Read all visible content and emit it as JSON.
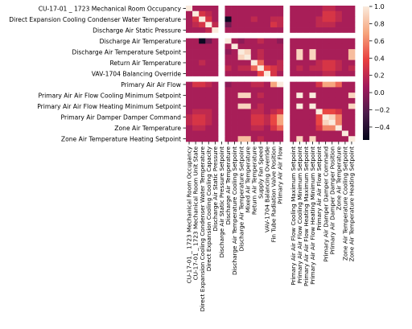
{
  "chart_data": {
    "type": "heatmap",
    "rows": [
      "CU-17-01 _ 1723 Mechanical Room Occupancy",
      "",
      "Direct Expansion Cooling Condenser Water Temperature",
      "",
      "Discharge Air Static Pressure",
      "",
      "Discharge Air Temperature",
      "",
      "Discharge Air Temperature Setpoint",
      "",
      "Return Air Temperature",
      "",
      "VAV-1704 Balancing Override",
      "",
      "Primary Air Air Flow",
      "",
      "Primary Air Air Flow Cooling Minimum Setpoint",
      "",
      "Primary Air Air Flow Heating Minimum Setpoint",
      "",
      "Primary Air Damper Damper Command",
      "",
      "Zone Air Temperature",
      "",
      "Zone Air Temperature Heating Setpoint"
    ],
    "columns": [
      "CU-17-01 _ 1723 Mechanical Room Occupancy",
      "CU-17-01 _ 1723 Mechanical Room Unit State",
      "Direct Expansion Cooling Condenser Water Temperature",
      "Direct Expansion Cooling Cooling Capacity",
      "Discharge Air Static Pressure",
      "Discharge Air Static Pressure Setpoint",
      "Discharge Air Temperature",
      "Discharge Air Temperature Cooling Setpoint",
      "Discharge Air Temperature Setpoint",
      "Mixed Air Temperature",
      "Return Air Temperature",
      "Supply Fan Speed",
      "VAV-1704 Balancing Override",
      "Fin Tube Radiation Valve Position",
      "Primary Air Air Flow",
      "",
      "Primary Air Air Flow Cooling Maximum Setpoint",
      "Primary Air Air Flow Cooling Minimum Setpoint",
      "Primary Air Air Flow Heating Maximum Setpoint",
      "Primary Air Air Flow Heating Minimum Setpoint",
      "Primary Air Air Flow Setpoint",
      "Primary Air Damper Damper Command",
      "Primary Air Damper Damper Position",
      "Zone Air Temperature",
      "Zone Air Temperature Cooling Setpoint",
      "Zone Air Temperature Heating Setpoint"
    ],
    "values": [
      [
        1.0,
        0.1,
        0.1,
        0.1,
        0.1,
        null,
        0.1,
        0.1,
        0.1,
        0.1,
        0.1,
        0.1,
        0.1,
        0.1,
        0.1,
        null,
        0.1,
        0.1,
        0.1,
        0.1,
        0.1,
        0.2,
        0.2,
        0.1,
        0.1,
        0.1
      ],
      [
        0.1,
        1.0,
        0.3,
        0.2,
        0.1,
        null,
        0.1,
        0.1,
        0.1,
        0.1,
        0.1,
        0.1,
        0.1,
        0.1,
        0.1,
        null,
        0.1,
        0.1,
        0.1,
        0.1,
        0.1,
        0.3,
        0.3,
        0.2,
        0.1,
        0.1
      ],
      [
        0.1,
        0.3,
        1.0,
        0.3,
        0.1,
        null,
        -0.5,
        0.1,
        0.1,
        0.1,
        0.2,
        0.1,
        0.1,
        0.2,
        0.2,
        null,
        0.1,
        0.1,
        0.1,
        0.1,
        0.2,
        0.3,
        0.3,
        0.2,
        0.1,
        0.1
      ],
      [
        0.1,
        0.2,
        0.3,
        1.0,
        0.2,
        null,
        -0.1,
        0.1,
        0.1,
        0.1,
        0.1,
        0.1,
        0.1,
        0.3,
        0.2,
        null,
        0.1,
        0.1,
        0.1,
        0.1,
        0.2,
        0.2,
        0.2,
        0.1,
        0.1,
        0.1
      ],
      [
        0.1,
        0.1,
        0.1,
        0.2,
        1.0,
        null,
        0.1,
        0.1,
        0.1,
        0.1,
        0.1,
        0.1,
        0.1,
        0.1,
        0.1,
        null,
        0.1,
        0.1,
        0.1,
        0.1,
        0.1,
        0.1,
        0.1,
        0.1,
        0.1,
        0.1
      ],
      [
        null,
        null,
        null,
        null,
        null,
        null,
        null,
        null,
        null,
        null,
        null,
        null,
        null,
        null,
        null,
        null,
        null,
        null,
        null,
        null,
        null,
        null,
        null,
        null,
        null,
        null
      ],
      [
        0.1,
        0.1,
        -0.5,
        -0.1,
        0.1,
        null,
        1.0,
        0.1,
        0.0,
        0.1,
        0.1,
        0.2,
        0.1,
        0.1,
        0.0,
        null,
        0.1,
        0.1,
        0.1,
        0.1,
        0.1,
        0.1,
        0.1,
        0.1,
        0.1,
        0.1
      ],
      [
        0.1,
        0.1,
        0.1,
        0.1,
        0.1,
        null,
        0.1,
        1.0,
        0.1,
        0.1,
        0.1,
        0.1,
        0.1,
        0.1,
        0.1,
        null,
        0.1,
        0.1,
        0.1,
        0.1,
        0.1,
        0.1,
        0.1,
        0.1,
        0.1,
        0.1
      ],
      [
        0.1,
        0.1,
        0.1,
        0.1,
        0.1,
        null,
        0.0,
        0.1,
        1.0,
        0.9,
        0.1,
        0.2,
        0.1,
        0.1,
        0.1,
        null,
        0.1,
        0.9,
        0.1,
        0.9,
        0.1,
        0.1,
        0.1,
        0.1,
        0.1,
        0.8
      ],
      [
        0.1,
        0.1,
        0.1,
        0.1,
        0.1,
        null,
        0.1,
        0.1,
        0.9,
        1.0,
        0.1,
        0.2,
        0.1,
        0.1,
        0.1,
        null,
        0.1,
        0.9,
        0.1,
        0.9,
        0.1,
        0.1,
        0.1,
        0.1,
        0.1,
        0.8
      ],
      [
        0.1,
        0.1,
        0.2,
        0.1,
        0.1,
        null,
        0.1,
        0.1,
        0.1,
        0.1,
        1.0,
        0.5,
        0.1,
        0.1,
        0.2,
        null,
        0.1,
        0.1,
        0.1,
        0.1,
        0.2,
        0.3,
        0.3,
        0.2,
        0.1,
        0.1
      ],
      [
        0.1,
        0.1,
        0.1,
        0.1,
        0.1,
        null,
        0.2,
        0.1,
        0.2,
        0.2,
        0.5,
        1.0,
        0.4,
        0.3,
        0.2,
        null,
        0.1,
        0.2,
        0.1,
        0.2,
        0.2,
        0.3,
        0.3,
        0.2,
        0.1,
        0.2
      ],
      [
        0.1,
        0.1,
        0.1,
        0.1,
        0.1,
        null,
        0.1,
        0.1,
        0.1,
        0.1,
        0.1,
        0.4,
        1.0,
        0.3,
        0.1,
        null,
        0.1,
        0.1,
        0.1,
        0.1,
        0.1,
        0.2,
        0.2,
        0.1,
        0.1,
        0.1
      ],
      [
        null,
        null,
        null,
        null,
        null,
        null,
        null,
        null,
        null,
        null,
        null,
        null,
        null,
        null,
        null,
        null,
        null,
        null,
        null,
        null,
        null,
        null,
        null,
        null,
        null,
        null
      ],
      [
        0.1,
        0.3,
        0.3,
        0.2,
        0.1,
        null,
        0.0,
        0.1,
        0.1,
        0.1,
        0.2,
        0.2,
        0.1,
        0.7,
        1.0,
        null,
        0.1,
        0.1,
        0.1,
        0.1,
        0.3,
        0.7,
        0.7,
        0.5,
        0.1,
        0.1
      ],
      [
        0.1,
        0.1,
        0.1,
        0.1,
        0.1,
        null,
        0.1,
        0.1,
        0.1,
        0.1,
        0.1,
        0.1,
        0.1,
        0.1,
        0.1,
        null,
        0.1,
        0.1,
        0.1,
        0.1,
        0.1,
        0.1,
        0.1,
        0.1,
        0.1,
        0.1
      ],
      [
        0.1,
        0.1,
        0.1,
        0.1,
        0.1,
        null,
        0.1,
        0.1,
        0.9,
        0.9,
        0.1,
        0.2,
        0.1,
        0.1,
        0.1,
        null,
        0.1,
        1.0,
        0.1,
        1.0,
        0.1,
        0.1,
        0.1,
        0.1,
        0.1,
        0.9
      ],
      [
        0.1,
        0.1,
        0.1,
        0.1,
        0.1,
        null,
        0.1,
        0.1,
        0.1,
        0.1,
        0.1,
        0.1,
        0.1,
        0.1,
        0.1,
        null,
        0.1,
        0.1,
        0.1,
        0.1,
        0.1,
        0.1,
        0.1,
        0.1,
        0.1,
        0.1
      ],
      [
        0.1,
        0.1,
        0.1,
        0.1,
        0.1,
        null,
        0.1,
        0.1,
        0.9,
        0.9,
        0.1,
        0.2,
        0.1,
        0.1,
        0.1,
        null,
        0.1,
        1.0,
        0.1,
        1.0,
        0.1,
        0.1,
        0.1,
        0.1,
        0.1,
        0.9
      ],
      [
        0.1,
        0.2,
        0.2,
        0.2,
        0.1,
        null,
        0.1,
        0.1,
        0.1,
        0.1,
        0.2,
        0.2,
        0.1,
        0.2,
        0.3,
        null,
        0.1,
        0.1,
        0.1,
        0.1,
        1.0,
        0.4,
        0.4,
        0.3,
        0.1,
        0.1
      ],
      [
        0.2,
        0.3,
        0.3,
        0.2,
        0.1,
        null,
        0.1,
        0.1,
        0.1,
        0.1,
        0.3,
        0.3,
        0.2,
        0.4,
        0.7,
        null,
        0.1,
        0.1,
        0.1,
        0.1,
        0.4,
        1.0,
        0.9,
        0.6,
        0.1,
        0.1
      ],
      [
        0.2,
        0.3,
        0.3,
        0.2,
        0.1,
        null,
        0.1,
        0.1,
        0.1,
        0.1,
        0.3,
        0.3,
        0.2,
        0.4,
        0.7,
        null,
        0.1,
        0.1,
        0.1,
        0.1,
        0.4,
        0.9,
        1.0,
        0.6,
        0.1,
        0.1
      ],
      [
        0.1,
        0.2,
        0.2,
        0.1,
        0.1,
        null,
        0.1,
        0.1,
        0.1,
        0.1,
        0.2,
        0.2,
        0.1,
        0.3,
        0.5,
        null,
        0.1,
        0.1,
        0.1,
        0.1,
        0.3,
        0.6,
        0.6,
        1.0,
        0.1,
        0.1
      ],
      [
        0.1,
        0.1,
        0.1,
        0.1,
        0.1,
        null,
        0.1,
        0.1,
        0.1,
        0.1,
        0.1,
        0.1,
        0.1,
        0.1,
        0.1,
        null,
        0.1,
        0.1,
        0.1,
        0.1,
        0.1,
        0.1,
        0.1,
        0.1,
        1.0,
        0.1
      ],
      [
        0.1,
        0.1,
        0.1,
        0.1,
        0.1,
        null,
        0.1,
        0.1,
        0.8,
        0.8,
        0.1,
        0.2,
        0.1,
        0.1,
        0.1,
        null,
        0.1,
        0.9,
        0.1,
        0.9,
        0.1,
        0.1,
        0.1,
        0.1,
        0.1,
        1.0
      ]
    ],
    "vmin": -0.55,
    "vmax": 1.0,
    "colorbar_ticks": [
      "1.0",
      "0.8",
      "0.6",
      "0.4",
      "0.2",
      "0.0",
      "−0.2",
      "−0.4"
    ],
    "colorbar_tick_values": [
      1.0,
      0.8,
      0.6,
      0.4,
      0.2,
      0.0,
      -0.2,
      -0.4
    ],
    "colormap": "rocket",
    "colormap_stops": [
      "#03051a",
      "#4c1d4b",
      "#a11a5b",
      "#e83f3f",
      "#f6a47c",
      "#faebdd"
    ],
    "missing_color": "#ffffff",
    "legend": "right colorbar",
    "grid": false
  }
}
